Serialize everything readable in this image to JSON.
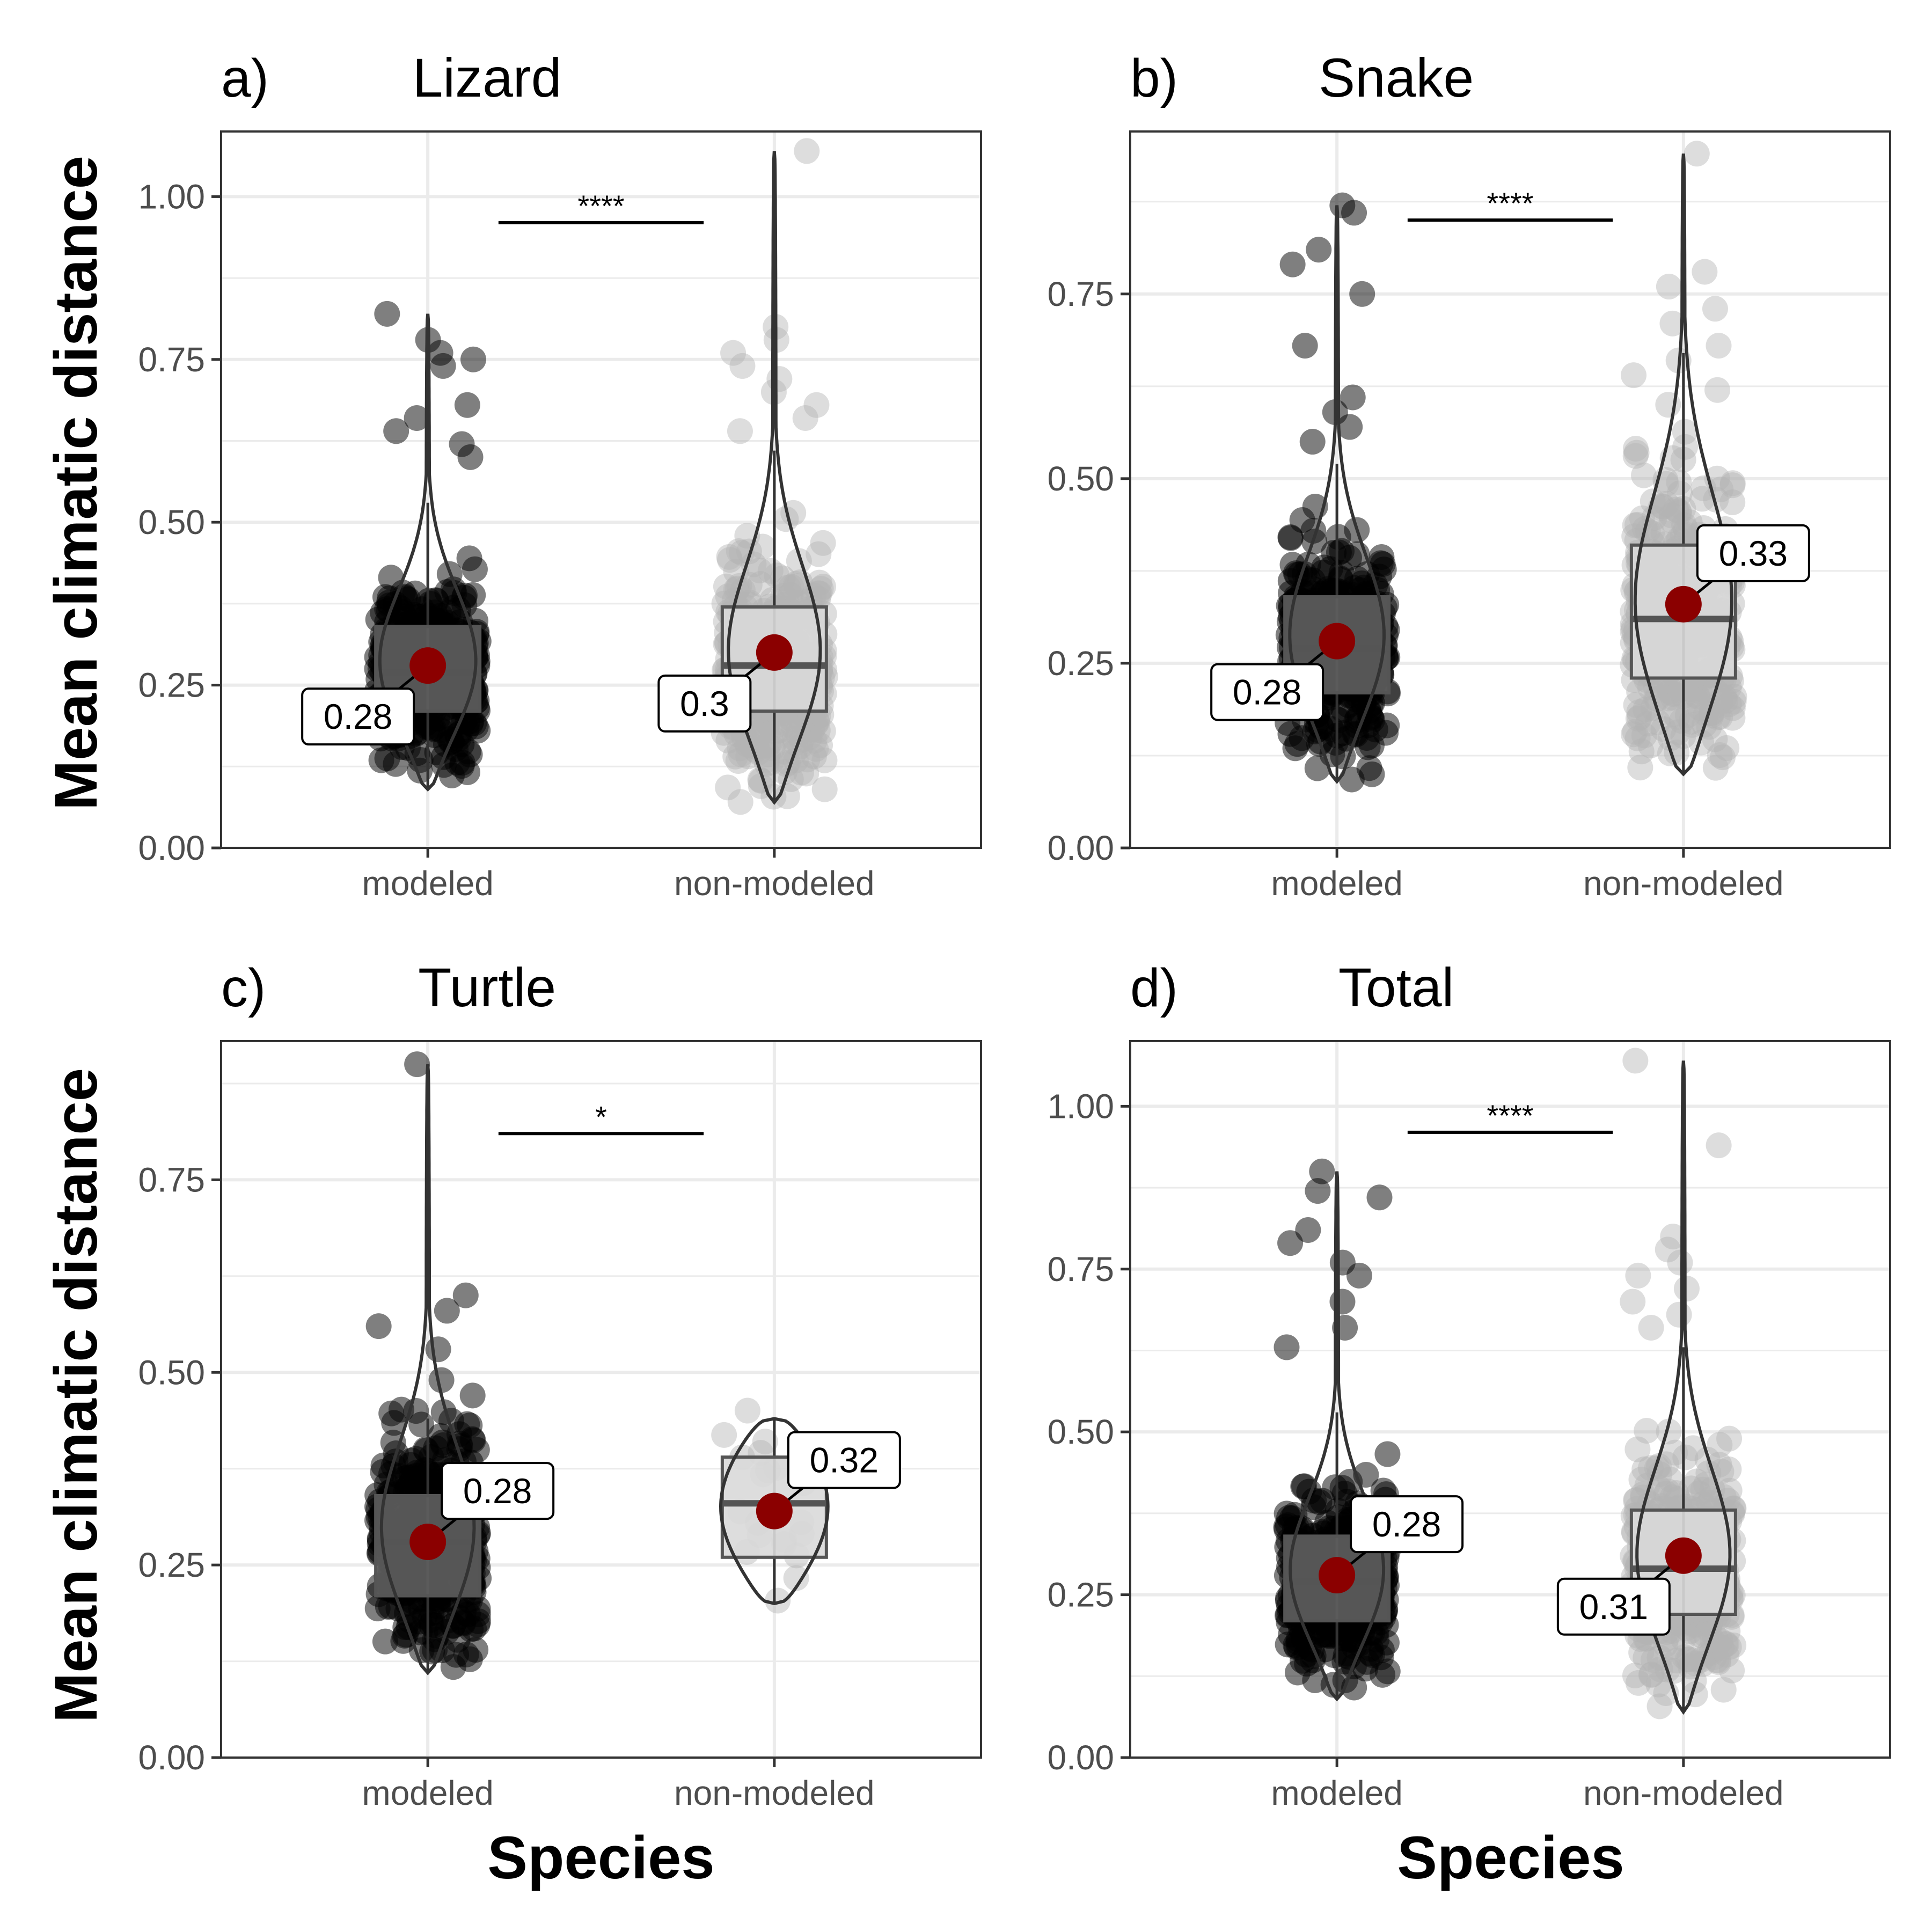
{
  "ylabel": "Mean climatic distance",
  "xlabel": "Species",
  "colors": {
    "modeled_points": "#000000",
    "nonmodeled_points": "#b3b3b3",
    "modeled_box": "#5f5f5f",
    "nonmodeled_box": "#d9d9d9",
    "violin_line": "#333333",
    "mean_point": "#8b0000",
    "grid": "#ebebeb",
    "panel_border": "#333333"
  },
  "chart_data": [
    {
      "type": "violin",
      "tag": "a)",
      "title": "Lizard",
      "categories": [
        "modeled",
        "non-modeled"
      ],
      "ylim": [
        0,
        1.1
      ],
      "yticks": [
        0.0,
        0.25,
        0.5,
        0.75,
        1.0
      ],
      "ytick_labels": [
        "0.00",
        "0.25",
        "0.50",
        "0.75",
        "1.00"
      ],
      "grid": true,
      "significance": "****",
      "sig_y": 0.96,
      "groups": [
        {
          "name": "modeled",
          "min": 0.09,
          "max": 0.82,
          "q1": 0.21,
          "median": 0.27,
          "q3": 0.34,
          "whisker_low": 0.09,
          "whisker_high": 0.53,
          "mean": 0.28,
          "mean_label": "0.28",
          "label_side": "left-below",
          "outliers": [
            0.82,
            0.78,
            0.76,
            0.75,
            0.74,
            0.68,
            0.66,
            0.64,
            0.62,
            0.6
          ]
        },
        {
          "name": "non-modeled",
          "min": 0.07,
          "max": 1.07,
          "q1": 0.21,
          "median": 0.28,
          "q3": 0.37,
          "whisker_low": 0.07,
          "whisker_high": 0.61,
          "mean": 0.3,
          "mean_label": "0.3",
          "label_side": "left-below",
          "outliers": [
            1.07,
            0.8,
            0.78,
            0.76,
            0.74,
            0.72,
            0.7,
            0.68,
            0.66,
            0.64
          ]
        }
      ]
    },
    {
      "type": "violin",
      "tag": "b)",
      "title": "Snake",
      "categories": [
        "modeled",
        "non-modeled"
      ],
      "ylim": [
        0,
        0.97
      ],
      "yticks": [
        0.0,
        0.25,
        0.5,
        0.75
      ],
      "ytick_labels": [
        "0.00",
        "0.25",
        "0.50",
        "0.75"
      ],
      "grid": true,
      "significance": "****",
      "sig_y": 0.85,
      "groups": [
        {
          "name": "modeled",
          "min": 0.09,
          "max": 0.87,
          "q1": 0.21,
          "median": 0.27,
          "q3": 0.34,
          "whisker_low": 0.09,
          "whisker_high": 0.52,
          "mean": 0.28,
          "mean_label": "0.28",
          "label_side": "left-below",
          "outliers": [
            0.87,
            0.86,
            0.81,
            0.79,
            0.75,
            0.68,
            0.61,
            0.59,
            0.57,
            0.55
          ]
        },
        {
          "name": "non-modeled",
          "min": 0.1,
          "max": 0.94,
          "q1": 0.23,
          "median": 0.31,
          "q3": 0.41,
          "whisker_low": 0.1,
          "whisker_high": 0.67,
          "mean": 0.33,
          "mean_label": "0.33",
          "label_side": "right-above",
          "outliers": [
            0.94,
            0.78,
            0.76,
            0.73,
            0.71,
            0.68,
            0.66,
            0.64,
            0.62,
            0.6
          ]
        }
      ]
    },
    {
      "type": "violin",
      "tag": "c)",
      "title": "Turtle",
      "categories": [
        "modeled",
        "non-modeled"
      ],
      "ylim": [
        0,
        0.93
      ],
      "yticks": [
        0.0,
        0.25,
        0.5,
        0.75
      ],
      "ytick_labels": [
        "0.00",
        "0.25",
        "0.50",
        "0.75"
      ],
      "grid": true,
      "significance": "*",
      "sig_y": 0.81,
      "groups": [
        {
          "name": "modeled",
          "min": 0.11,
          "max": 0.9,
          "q1": 0.21,
          "median": 0.28,
          "q3": 0.34,
          "whisker_low": 0.11,
          "whisker_high": 0.44,
          "mean": 0.28,
          "mean_label": "0.28",
          "label_side": "right-above",
          "outliers": [
            0.9,
            0.6,
            0.58,
            0.56,
            0.53,
            0.49,
            0.47,
            0.45
          ]
        },
        {
          "name": "non-modeled",
          "min": 0.2,
          "max": 0.44,
          "q1": 0.26,
          "median": 0.33,
          "q3": 0.39,
          "whisker_low": 0.2,
          "whisker_high": 0.44,
          "mean": 0.32,
          "mean_label": "0.32",
          "label_side": "right-above",
          "outliers": []
        }
      ]
    },
    {
      "type": "violin",
      "tag": "d)",
      "title": "Total",
      "categories": [
        "modeled",
        "non-modeled"
      ],
      "ylim": [
        0,
        1.1
      ],
      "yticks": [
        0.0,
        0.25,
        0.5,
        0.75,
        1.0
      ],
      "ytick_labels": [
        "0.00",
        "0.25",
        "0.50",
        "0.75",
        "1.00"
      ],
      "grid": true,
      "significance": "****",
      "sig_y": 0.96,
      "groups": [
        {
          "name": "modeled",
          "min": 0.09,
          "max": 0.9,
          "q1": 0.21,
          "median": 0.27,
          "q3": 0.34,
          "whisker_low": 0.09,
          "whisker_high": 0.53,
          "mean": 0.28,
          "mean_label": "0.28",
          "label_side": "right-above",
          "outliers": [
            0.9,
            0.87,
            0.86,
            0.81,
            0.79,
            0.76,
            0.74,
            0.7,
            0.66,
            0.63
          ]
        },
        {
          "name": "non-modeled",
          "min": 0.07,
          "max": 1.07,
          "q1": 0.22,
          "median": 0.29,
          "q3": 0.38,
          "whisker_low": 0.07,
          "whisker_high": 0.63,
          "mean": 0.31,
          "mean_label": "0.31",
          "label_side": "left-below",
          "outliers": [
            1.07,
            0.94,
            0.8,
            0.78,
            0.76,
            0.74,
            0.72,
            0.7,
            0.68,
            0.66
          ]
        }
      ]
    }
  ]
}
